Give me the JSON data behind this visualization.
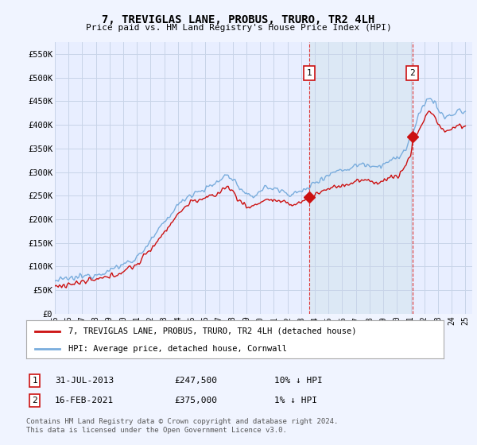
{
  "title": "7, TREVIGLAS LANE, PROBUS, TRURO, TR2 4LH",
  "subtitle": "Price paid vs. HM Land Registry's House Price Index (HPI)",
  "background_color": "#f0f4ff",
  "plot_bg_color": "#e8eeff",
  "grid_color": "#c8d4e8",
  "hpi_color": "#7aaddd",
  "price_color": "#cc1111",
  "ylim": [
    0,
    575000
  ],
  "yticks": [
    0,
    50000,
    100000,
    150000,
    200000,
    250000,
    300000,
    350000,
    400000,
    450000,
    500000,
    550000
  ],
  "ytick_labels": [
    "£0",
    "£50K",
    "£100K",
    "£150K",
    "£200K",
    "£250K",
    "£300K",
    "£350K",
    "£400K",
    "£450K",
    "£500K",
    "£550K"
  ],
  "xlim_start": 1995.0,
  "xlim_end": 2025.5,
  "xtick_years": [
    1995,
    1996,
    1997,
    1998,
    1999,
    2000,
    2001,
    2002,
    2003,
    2004,
    2005,
    2006,
    2007,
    2008,
    2009,
    2010,
    2011,
    2012,
    2013,
    2014,
    2015,
    2016,
    2017,
    2018,
    2019,
    2020,
    2021,
    2022,
    2023,
    2024,
    2025
  ],
  "purchase1_x": 2013.58,
  "purchase1_y": 247500,
  "purchase1_label": "1",
  "purchase1_date": "31-JUL-2013",
  "purchase1_price": "£247,500",
  "purchase1_hpi": "10% ↓ HPI",
  "purchase2_x": 2021.12,
  "purchase2_y": 375000,
  "purchase2_label": "2",
  "purchase2_date": "16-FEB-2021",
  "purchase2_price": "£375,000",
  "purchase2_hpi": "1% ↓ HPI",
  "legend_line1": "7, TREVIGLAS LANE, PROBUS, TRURO, TR2 4LH (detached house)",
  "legend_line2": "HPI: Average price, detached house, Cornwall",
  "footer": "Contains HM Land Registry data © Crown copyright and database right 2024.\nThis data is licensed under the Open Government Licence v3.0.",
  "shade_color": "#dce8f5"
}
